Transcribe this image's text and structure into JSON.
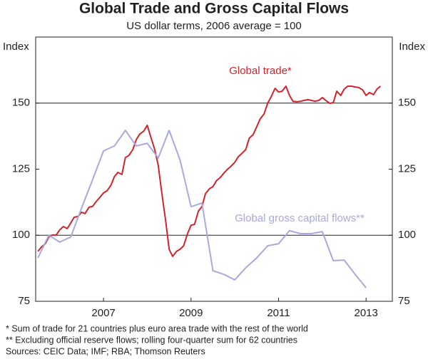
{
  "chart_data": {
    "type": "line",
    "title": "Global Trade and Gross Capital Flows",
    "subtitle": "US dollar terms, 2006 average = 100",
    "y_label": "Index",
    "y2_label": "Index",
    "xlim": [
      2005.95,
      2014.1
    ],
    "xticks": [
      {
        "value": 2007.5,
        "label": "2007"
      },
      {
        "value": 2009.5,
        "label": "2009"
      },
      {
        "value": 2011.5,
        "label": "2011"
      },
      {
        "value": 2013.5,
        "label": "2013"
      }
    ],
    "ylim": [
      75,
      175
    ],
    "yticks": [
      75,
      100,
      125,
      150
    ],
    "hlines": [
      100,
      150
    ],
    "series": [
      {
        "name": "Global trade*",
        "color": "#d2232a",
        "x": [
          2006.0,
          2006.08,
          2006.17,
          2006.25,
          2006.33,
          2006.42,
          2006.5,
          2006.58,
          2006.67,
          2006.75,
          2006.83,
          2006.92,
          2007.0,
          2007.08,
          2007.17,
          2007.25,
          2007.33,
          2007.42,
          2007.5,
          2007.58,
          2007.67,
          2007.75,
          2007.83,
          2007.92,
          2008.0,
          2008.08,
          2008.17,
          2008.25,
          2008.33,
          2008.42,
          2008.5,
          2008.58,
          2008.67,
          2008.75,
          2008.83,
          2008.92,
          2009.0,
          2009.08,
          2009.17,
          2009.25,
          2009.33,
          2009.42,
          2009.5,
          2009.58,
          2009.67,
          2009.75,
          2009.83,
          2009.92,
          2010.0,
          2010.08,
          2010.17,
          2010.25,
          2010.33,
          2010.42,
          2010.5,
          2010.58,
          2010.67,
          2010.75,
          2010.83,
          2010.92,
          2011.0,
          2011.08,
          2011.17,
          2011.25,
          2011.33,
          2011.42,
          2011.5,
          2011.58,
          2011.67,
          2011.75,
          2011.83,
          2011.92,
          2012.0,
          2012.08,
          2012.17,
          2012.25,
          2012.33,
          2012.42,
          2012.5,
          2012.58,
          2012.67,
          2012.75,
          2012.83,
          2012.92,
          2013.0,
          2013.08,
          2013.17,
          2013.25,
          2013.33,
          2013.42,
          2013.5,
          2013.58,
          2013.67,
          2013.75,
          2013.83
        ],
        "values": [
          93.9,
          95.5,
          96.8,
          99.3,
          100.1,
          100.1,
          102,
          103.3,
          102.5,
          104.6,
          106.8,
          107.1,
          108.7,
          108.2,
          110.6,
          110.9,
          112.7,
          114.4,
          116,
          116.8,
          118.9,
          122.2,
          123.8,
          123,
          129.4,
          130.2,
          132.4,
          136.2,
          138.3,
          139.4,
          141.6,
          137.3,
          132.4,
          126.5,
          116.2,
          105.5,
          94.7,
          92,
          93.9,
          94.7,
          96,
          100.6,
          103.8,
          104.1,
          109.2,
          110.8,
          115.7,
          117.6,
          118.4,
          120.6,
          121.9,
          123.5,
          124.9,
          126.2,
          127.6,
          129.7,
          131.1,
          132.4,
          136.7,
          138.1,
          141,
          144,
          145.9,
          149.9,
          152.4,
          155.6,
          154.2,
          154.5,
          156.4,
          152.9,
          150.7,
          150.5,
          150.7,
          151,
          151.3,
          151,
          150.7,
          151,
          152.1,
          151,
          149.9,
          150.2,
          154.5,
          152.9,
          155.3,
          156.4,
          156.4,
          156.1,
          155.9,
          155,
          152.9,
          154,
          153.2,
          155.3,
          156.4
        ]
      },
      {
        "name": "Global gross capital flows**",
        "color": "#a9a9df",
        "x": [
          2006.0,
          2006.25,
          2006.5,
          2006.75,
          2007.0,
          2007.25,
          2007.5,
          2007.75,
          2008.0,
          2008.25,
          2008.5,
          2008.75,
          2009.0,
          2009.25,
          2009.5,
          2009.75,
          2010.0,
          2010.25,
          2010.5,
          2010.75,
          2011.0,
          2011.25,
          2011.5,
          2011.75,
          2012.0,
          2012.25,
          2012.5,
          2012.75,
          2013.0,
          2013.25,
          2013.5
        ],
        "values": [
          91.4,
          100,
          97.4,
          99.3,
          110.3,
          121,
          131.9,
          133.8,
          139.7,
          133.8,
          134.8,
          129.2,
          139.7,
          128.4,
          110.8,
          112.2,
          86.6,
          85.2,
          83.1,
          87.7,
          91.4,
          96,
          96.8,
          101.7,
          100.6,
          100.6,
          101.4,
          90.4,
          90.6,
          85.2,
          80.1
        ]
      }
    ],
    "footnotes": [
      "*   Sum of trade for 21 countries plus euro area trade with the rest of the world",
      "**  Excluding official reserve flows; rolling four-quarter sum for 62 countries",
      "Sources: CEIC Data; IMF; RBA; Thomson Reuters"
    ]
  }
}
